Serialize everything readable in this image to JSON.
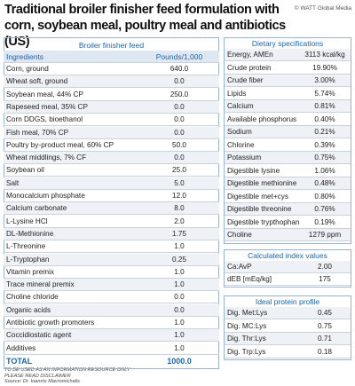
{
  "header": {
    "title": "Traditional broiler finisher feed formulation with corn, soybean meal, poultry meal and antibiotics (US)",
    "copyright": "© WATT Global Media"
  },
  "feed_table": {
    "title": "Broiler finisher feed",
    "columns": [
      "Ingredients",
      "Pounds/1,000"
    ],
    "rows": [
      [
        "Corn, ground",
        "640.0"
      ],
      [
        "Wheat soft, ground",
        "0.0"
      ],
      [
        "Soybean meal, 44% CP",
        "250.0"
      ],
      [
        "Rapeseed meal, 35% CP",
        "0.0"
      ],
      [
        "Corn DDGS, bioethanol",
        "0.0"
      ],
      [
        "Fish meal, 70% CP",
        "0.0"
      ],
      [
        "Poultry by-product meal, 60% CP",
        "50.0"
      ],
      [
        "Wheat middlings, 7% CF",
        "0.0"
      ],
      [
        "Soybean oil",
        "25.0"
      ],
      [
        "Salt",
        "5.0"
      ],
      [
        "Monocalcium phosphate",
        "12.0"
      ],
      [
        "Calcium carbonate",
        "8.0"
      ],
      [
        "L-Lysine HCl",
        "2.0"
      ],
      [
        "DL-Methionine",
        "1.75"
      ],
      [
        "L-Threonine",
        "1.0"
      ],
      [
        "L-Tryptophan",
        "0.25"
      ],
      [
        "Vitamin premix",
        "1.0"
      ],
      [
        "Trace mineral premix",
        "1.0"
      ],
      [
        "Choline chloride",
        "0.0"
      ],
      [
        "Organic acids",
        "0.0"
      ],
      [
        "Antibiotic growth promoters",
        "1.0"
      ],
      [
        "Coccidiostatic agent",
        "1.0"
      ],
      [
        "Additives",
        "1.0"
      ]
    ],
    "total": [
      "TOTAL",
      "1000.0"
    ]
  },
  "dietary_specifications": {
    "title": "Dietary specifications",
    "rows": [
      [
        "Energy, AMEn",
        "3113 kcal/kg"
      ],
      [
        "Crude protein",
        "19.90%"
      ],
      [
        "Crude fiber",
        "3.00%"
      ],
      [
        "Lipids",
        "5.74%"
      ],
      [
        "Calcium",
        "0.81%"
      ],
      [
        "Available phosphorus",
        "0.40%"
      ],
      [
        "Sodium",
        "0.21%"
      ],
      [
        "Chlorine",
        "0.39%"
      ],
      [
        "Potassium",
        "0.75%"
      ],
      [
        "Digestible lysine",
        "1.06%"
      ],
      [
        "Digestible methionine",
        "0.48%"
      ],
      [
        "Digestible met+cys",
        "0.80%"
      ],
      [
        "Digestible threonine",
        "0.76%"
      ],
      [
        "Digestible trypthophan",
        "0.19%"
      ],
      [
        "Choline",
        "1279 ppm"
      ]
    ]
  },
  "calculated_index_values": {
    "title": "Calculated index values",
    "rows": [
      [
        "Ca:AvP",
        "2.00"
      ],
      [
        "dEB [mEq/kg]",
        "175"
      ]
    ]
  },
  "ideal_protein_profile": {
    "title": "Ideal protein profile",
    "rows": [
      [
        "Dig. Met:Lys",
        "0.45"
      ],
      [
        "Dig. MC:Lys",
        "0.75"
      ],
      [
        "Dig. Thr:Lys",
        "0.71"
      ],
      [
        "Dig. Trp:Lys",
        "0.18"
      ]
    ]
  },
  "footer": {
    "lines": [
      "TO BE USED AS AN INFORMATION RESOURCE ONLY",
      "PLEASE READ DISCLAIMER",
      "Source: Dr. Ioannis Mavromichalis"
    ]
  }
}
